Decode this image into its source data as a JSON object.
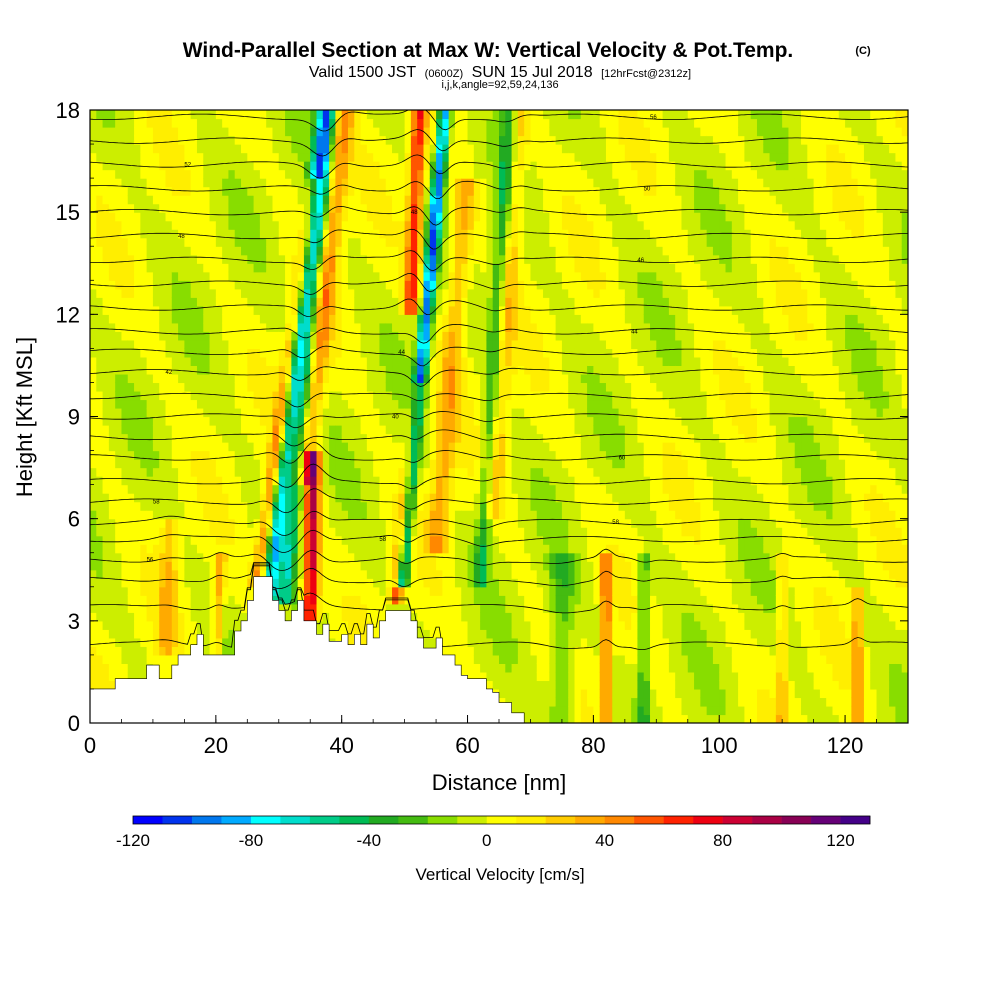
{
  "chart_data": {
    "type": "heatmap",
    "title": "Wind-Parallel Section at Max W: Vertical Velocity & Pot.Temp.",
    "title_tag": "(C)",
    "subtitle_prefix": "Valid 1500 JST",
    "subtitle_zulu": "(0600Z)",
    "subtitle_main": "SUN 15 Jul 2018",
    "subtitle_fcst": "[12hrFcst@2312z]",
    "subtitle_indices": "i,j,k,angle=92,59,24,136",
    "xlabel": "Distance [nm]",
    "ylabel": "Height [Kft MSL]",
    "xlim": [
      0,
      130
    ],
    "ylim": [
      0,
      18
    ],
    "x_ticks": [
      0,
      20,
      40,
      60,
      80,
      100,
      120
    ],
    "y_ticks": [
      0,
      3,
      6,
      9,
      12,
      15,
      18
    ],
    "colorbar": {
      "label": "Vertical Velocity [cm/s]",
      "range": [
        -120,
        130
      ],
      "step": 10,
      "ticks": [
        -120,
        -80,
        -40,
        0,
        40,
        80,
        120
      ],
      "colors": [
        "#0000ff",
        "#0033ee",
        "#0077ee",
        "#00aaff",
        "#00ffff",
        "#00ddcc",
        "#00cc88",
        "#00bb55",
        "#22aa22",
        "#44bb11",
        "#88dd00",
        "#ccee00",
        "#ffff00",
        "#ffee00",
        "#ffcc00",
        "#ffaa00",
        "#ff8800",
        "#ff5500",
        "#ff2200",
        "#ee0011",
        "#cc0033",
        "#aa0044",
        "#880055",
        "#660077",
        "#440088"
      ]
    },
    "terrain": [
      [
        0,
        1
      ],
      [
        4,
        1
      ],
      [
        4,
        1.3
      ],
      [
        9,
        1.3
      ],
      [
        9,
        1.7
      ],
      [
        11,
        1.7
      ],
      [
        11,
        1.3
      ],
      [
        13,
        1.3
      ],
      [
        13,
        1.7
      ],
      [
        14,
        1.7
      ],
      [
        14,
        2
      ],
      [
        16,
        2
      ],
      [
        16,
        2.3
      ],
      [
        17,
        2.3
      ],
      [
        17,
        2.6
      ],
      [
        18,
        2.6
      ],
      [
        18,
        2
      ],
      [
        23,
        2
      ],
      [
        23,
        2.7
      ],
      [
        24,
        2.7
      ],
      [
        24,
        3
      ],
      [
        25,
        3
      ],
      [
        25,
        3.6
      ],
      [
        26,
        3.6
      ],
      [
        26,
        4.3
      ],
      [
        29,
        4.3
      ],
      [
        29,
        3.6
      ],
      [
        30,
        3.6
      ],
      [
        30,
        3.3
      ],
      [
        31,
        3.3
      ],
      [
        31,
        3
      ],
      [
        32,
        3
      ],
      [
        32,
        3.3
      ],
      [
        33,
        3.3
      ],
      [
        33,
        3.6
      ],
      [
        34,
        3.6
      ],
      [
        34,
        3
      ],
      [
        36,
        3
      ],
      [
        36,
        2.6
      ],
      [
        37,
        2.6
      ],
      [
        37,
        2.9
      ],
      [
        38,
        2.9
      ],
      [
        38,
        2.4
      ],
      [
        40,
        2.4
      ],
      [
        40,
        2.6
      ],
      [
        41,
        2.6
      ],
      [
        41,
        2.3
      ],
      [
        42,
        2.3
      ],
      [
        42,
        2.6
      ],
      [
        43,
        2.6
      ],
      [
        43,
        2.3
      ],
      [
        44,
        2.3
      ],
      [
        44,
        2.9
      ],
      [
        45,
        2.9
      ],
      [
        45,
        2.5
      ],
      [
        46,
        2.5
      ],
      [
        46,
        3
      ],
      [
        47,
        3
      ],
      [
        47,
        3.3
      ],
      [
        51,
        3.3
      ],
      [
        51,
        3
      ],
      [
        52,
        3
      ],
      [
        52,
        2.5
      ],
      [
        53,
        2.5
      ],
      [
        53,
        2.2
      ],
      [
        55,
        2.2
      ],
      [
        55,
        2.5
      ],
      [
        56,
        2.5
      ],
      [
        56,
        2
      ],
      [
        58,
        2
      ],
      [
        58,
        1.7
      ],
      [
        59,
        1.7
      ],
      [
        59,
        1.4
      ],
      [
        60,
        1.4
      ],
      [
        60,
        1.3
      ],
      [
        63,
        1.3
      ],
      [
        63,
        1
      ],
      [
        64,
        1
      ],
      [
        64,
        0.9
      ],
      [
        65,
        0.9
      ],
      [
        65,
        0.6
      ],
      [
        67,
        0.6
      ],
      [
        67,
        0.3
      ],
      [
        69,
        0.3
      ],
      [
        69,
        0
      ],
      [
        130,
        0
      ]
    ],
    "w_features": [
      {
        "x": 28.5,
        "slope": 0.55,
        "amp": -70,
        "width": 1.3,
        "zmin": 3.5,
        "zmax": 18
      },
      {
        "x": 31,
        "slope": 0.45,
        "amp": -45,
        "width": 1.2,
        "zmin": 3.5,
        "zmax": 18
      },
      {
        "x": 26.5,
        "slope": 0.7,
        "amp": 45,
        "width": 1.1,
        "zmin": 4,
        "zmax": 16
      },
      {
        "x": 35,
        "slope": 0.1,
        "amp": 90,
        "width": 1.2,
        "zmin": 3,
        "zmax": 8
      },
      {
        "x": 34,
        "slope": 0.55,
        "amp": 40,
        "width": 1.6,
        "zmin": 7,
        "zmax": 18
      },
      {
        "x": 49.5,
        "slope": 0.45,
        "amp": -95,
        "width": 1.0,
        "zmin": 4,
        "zmax": 18
      },
      {
        "x": 48.5,
        "slope": 0.55,
        "amp": 55,
        "width": 1.1,
        "zmin": 3.5,
        "zmax": 10
      },
      {
        "x": 51,
        "slope": 0.2,
        "amp": 65,
        "width": 1.2,
        "zmin": 12,
        "zmax": 18
      },
      {
        "x": 55,
        "slope": 0.4,
        "amp": 35,
        "width": 1.8,
        "zmin": 5,
        "zmax": 16
      },
      {
        "x": 62,
        "slope": 0.3,
        "amp": -35,
        "width": 1.2,
        "zmin": 4,
        "zmax": 18
      },
      {
        "x": 64,
        "slope": 0.35,
        "amp": 25,
        "width": 1.4,
        "zmin": 6,
        "zmax": 18
      },
      {
        "x": 82,
        "slope": 0.0,
        "amp": 60,
        "width": 0.7,
        "zmin": 0,
        "zmax": 5
      },
      {
        "x": 88,
        "slope": 0.0,
        "amp": -30,
        "width": 1.0,
        "zmin": 0,
        "zmax": 5
      },
      {
        "x": 110,
        "slope": 0.0,
        "amp": 30,
        "width": 0.7,
        "zmin": 0,
        "zmax": 5
      },
      {
        "x": 122,
        "slope": 0.0,
        "amp": 45,
        "width": 0.7,
        "zmin": 0,
        "zmax": 4
      },
      {
        "x": 75,
        "slope": 0.0,
        "amp": -25,
        "width": 2.0,
        "zmin": 0,
        "zmax": 5
      },
      {
        "x": 12,
        "slope": 0.2,
        "amp": 25,
        "width": 1.5,
        "zmin": 2,
        "zmax": 6
      },
      {
        "x": 20,
        "slope": 0.2,
        "amp": 35,
        "width": 0.8,
        "zmin": 1.5,
        "zmax": 5
      }
    ],
    "isentropes": [
      {
        "z": 2.3,
        "label": ""
      },
      {
        "z": 3.4,
        "label": ""
      },
      {
        "z": 4.2,
        "label": ""
      },
      {
        "z": 4.8,
        "label": "56"
      },
      {
        "z": 5.4,
        "label": "58"
      },
      {
        "z": 5.9,
        "label": "58"
      },
      {
        "z": 6.5,
        "label": "58"
      },
      {
        "z": 7.1,
        "label": ""
      },
      {
        "z": 7.8,
        "label": "60"
      },
      {
        "z": 8.4,
        "label": ""
      },
      {
        "z": 9.0,
        "label": "40"
      },
      {
        "z": 9.6,
        "label": ""
      },
      {
        "z": 10.3,
        "label": "42"
      },
      {
        "z": 10.9,
        "label": "44"
      },
      {
        "z": 11.5,
        "label": "44"
      },
      {
        "z": 12.2,
        "label": ""
      },
      {
        "z": 12.9,
        "label": ""
      },
      {
        "z": 13.6,
        "label": "46"
      },
      {
        "z": 14.3,
        "label": "48"
      },
      {
        "z": 15.0,
        "label": "48"
      },
      {
        "z": 15.7,
        "label": "50"
      },
      {
        "z": 16.4,
        "label": "52"
      },
      {
        "z": 17.1,
        "label": ""
      },
      {
        "z": 17.8,
        "label": "56"
      }
    ]
  }
}
